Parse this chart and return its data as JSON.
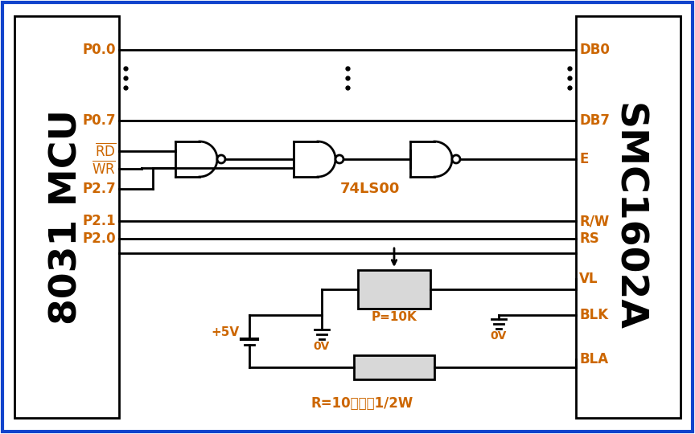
{
  "bg_color": "#ffffff",
  "line_color": "#000000",
  "orange": "#cc6600",
  "fig_width": 8.64,
  "fig_height": 5.4,
  "left_label": "8031 MCU",
  "right_label": "SMC1602A",
  "ic_label": "74LS00",
  "bottom_label": "R=10欧姆，1/2W",
  "supply_label": "+5V",
  "pot_label": "P=10K",
  "gnd_label": "0V"
}
